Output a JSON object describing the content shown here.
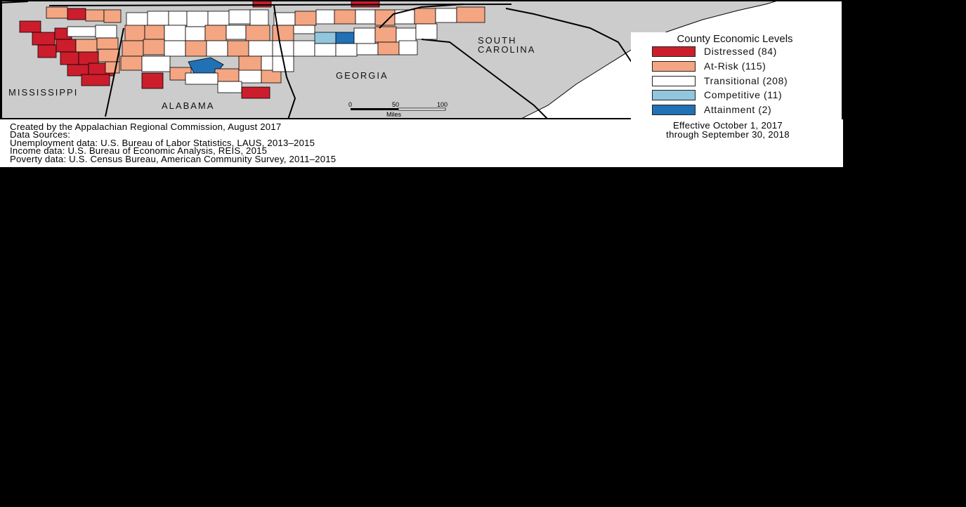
{
  "map": {
    "state_labels": {
      "mississippi": "MISSISSIPPI",
      "alabama": "ALABAMA",
      "georgia": "GEORGIA",
      "south_carolina_line1": "SOUTH",
      "south_carolina_line2": "CAROLINA"
    },
    "scale_bar": {
      "tick_0": "0",
      "tick_50": "50",
      "tick_100": "100",
      "unit": "Miles"
    }
  },
  "legend": {
    "title": "County Economic Levels",
    "items": [
      {
        "label": "Distressed (84)",
        "color": "#cc1d2c"
      },
      {
        "label": "At-Risk (115)",
        "color": "#f4a582"
      },
      {
        "label": "Transitional (208)",
        "color": "#ffffff"
      },
      {
        "label": "Competitive (11)",
        "color": "#92c5de"
      },
      {
        "label": "Attainment (2)",
        "color": "#2171b5"
      }
    ]
  },
  "colors": {
    "non_region_fill": "#cccccc",
    "water": "#ffffff",
    "outline": "#000000"
  },
  "credits": {
    "line1": "Created by the Appalachian Regional Commission, August 2017",
    "line2": "Data Sources:",
    "line3": "Unemployment data: U.S. Bureau of Labor Statistics, LAUS, 2013–2015",
    "line4": "Income data: U.S. Bureau of Economic Analysis, REIS, 2015",
    "line5": "Poverty data: U.S. Census Bureau, American Community Survey, 2011–2015"
  },
  "effective": {
    "line1": "Effective October 1, 2017",
    "line2": "through September 30, 2018"
  }
}
